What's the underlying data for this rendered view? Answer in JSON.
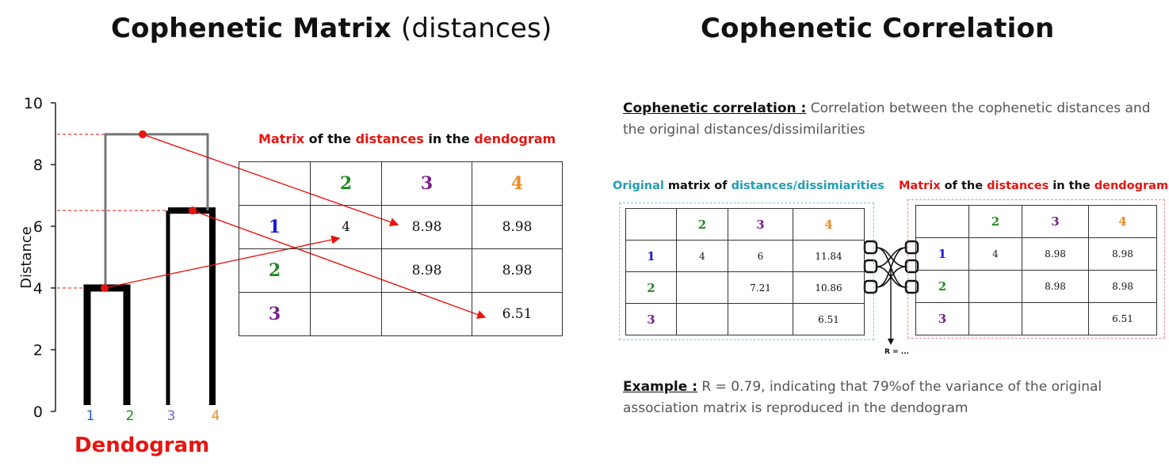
{
  "titles": {
    "left_main": "Cophenetic Matrix",
    "left_paren": "(distances)",
    "right": "Cophenetic Correlation"
  },
  "dendrogram": {
    "label": "Dendogram",
    "y_axis_label": "Distance",
    "y_ticks": [
      "0",
      "2",
      "4",
      "6",
      "8",
      "10"
    ],
    "leaves": [
      {
        "label": "1",
        "color": "#1a5fd6"
      },
      {
        "label": "2",
        "color": "#1e8a1e"
      },
      {
        "label": "3",
        "color": "#7a5fd6"
      },
      {
        "label": "4",
        "color": "#f08a1e"
      }
    ],
    "merge_heights": [
      4,
      6.51,
      8.98
    ],
    "ylim": [
      0,
      10
    ]
  },
  "main_caption": {
    "w1": "Matrix",
    "w2": " of the ",
    "w3": "distances",
    "w4": " in the ",
    "w5": "dendogram"
  },
  "cophenetic_matrix": {
    "col_headers": [
      "2",
      "3",
      "4"
    ],
    "row_headers": [
      "1",
      "2",
      "3"
    ],
    "rows": [
      [
        "4",
        "8.98",
        "8.98"
      ],
      [
        "",
        "8.98",
        "8.98"
      ],
      [
        "",
        "",
        "6.51"
      ]
    ]
  },
  "definition": {
    "term": "Cophenetic correlation :",
    "text": " Correlation between the cophenetic distances and the original distances/dissimilarities"
  },
  "original_caption": {
    "w1": "Original",
    "w2": " matrix of ",
    "w3": "distances/dissimiarities"
  },
  "original_matrix": {
    "col_headers": [
      "2",
      "3",
      "4"
    ],
    "row_headers": [
      "1",
      "2",
      "3"
    ],
    "rows": [
      [
        "4",
        "6",
        "11.84"
      ],
      [
        "",
        "7.21",
        "10.86"
      ],
      [
        "",
        "",
        "6.51"
      ]
    ]
  },
  "dendo_caption": {
    "w1": "Matrix",
    "w2": " of the ",
    "w3": "distances",
    "w4": " in the ",
    "w5": "dendogram"
  },
  "dendo_matrix": {
    "col_headers": [
      "2",
      "3",
      "4"
    ],
    "row_headers": [
      "1",
      "2",
      "3"
    ],
    "rows": [
      [
        "4",
        "8.98",
        "8.98"
      ],
      [
        "",
        "8.98",
        "8.98"
      ],
      [
        "",
        "",
        "6.51"
      ]
    ]
  },
  "r_label": "R = ...",
  "example": {
    "term": "Example :",
    "text": " R = 0.79, indicating that 79%of the variance of the original association matrix is reproduced in the dendogram"
  },
  "colors": {
    "accent_red": "#e8140f",
    "cyan": "#1e9fb3",
    "blue": "#1a1ad6",
    "green": "#1e8a1e",
    "purple": "#7a1f8a",
    "orange": "#f08a1e"
  }
}
